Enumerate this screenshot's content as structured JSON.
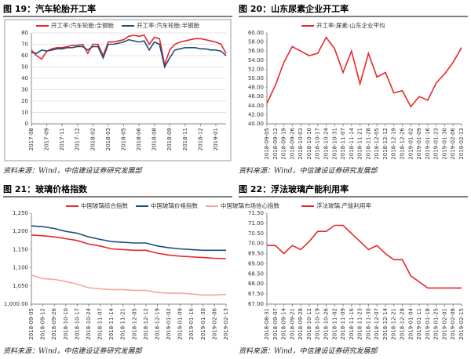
{
  "chart_data": [
    {
      "type": "line",
      "title": "图 19：汽车轮胎开工率",
      "source": "资料来源：Wind，中信建设证券研究发展部",
      "categories": [
        "2017-08",
        null,
        null,
        "2017-09",
        null,
        null,
        "2017-11",
        null,
        null,
        "2017-12",
        null,
        null,
        "2018-02",
        null,
        null,
        "2018-03",
        null,
        null,
        "2018-05",
        null,
        null,
        "2018-06",
        null,
        null,
        "2018-08",
        null,
        null,
        "2018-09",
        null,
        null,
        "2018-11",
        null,
        null,
        "2018-12",
        null,
        null,
        "2019-01",
        null,
        null
      ],
      "series": [
        {
          "name": "开工率:汽车轮胎:全钢胎",
          "color": "#e8262b",
          "values": [
            65,
            60,
            57,
            64,
            66,
            67,
            67,
            68,
            69,
            69,
            70,
            62,
            70,
            70,
            60,
            72,
            72,
            73,
            74,
            77,
            78,
            77,
            78,
            70,
            76,
            75,
            52,
            65,
            70,
            72,
            73,
            74,
            75,
            75,
            74,
            73,
            72,
            70,
            62
          ]
        },
        {
          "name": "开工率:汽车轮胎:半钢胎",
          "color": "#1f4e79",
          "values": [
            63,
            62,
            65,
            64,
            65,
            66,
            66,
            67,
            67,
            68,
            68,
            65,
            68,
            68,
            58,
            70,
            70,
            71,
            72,
            74,
            73,
            72,
            73,
            65,
            72,
            70,
            50,
            58,
            65,
            66,
            67,
            67,
            67,
            66,
            66,
            65,
            65,
            64,
            60
          ]
        }
      ],
      "ylim": [
        0,
        80
      ],
      "yticks": [
        0,
        10,
        20,
        30,
        40,
        50,
        60,
        70,
        80
      ],
      "grid": true,
      "frame": true
    },
    {
      "type": "line",
      "title": "图 20：山东尿素企业开工率",
      "source": "资料来源：Wind，中信建设证券研究发展部",
      "categories": [
        "2018-09-05",
        "2018-09-12",
        "2018-09-19",
        "2018-09-26",
        "2018-10-03",
        "2018-10-10",
        "2018-10-17",
        "2018-10-24",
        "2018-10-31",
        "2018-11-07",
        "2018-11-14",
        "2018-11-21",
        "2018-11-28",
        "2018-12-05",
        "2018-12-12",
        "2018-12-19",
        "2018-12-26",
        "2019-01-02",
        "2019-01-09",
        "2019-01-16",
        "2019-01-23",
        "2019-01-30",
        "2019-02-06",
        "2019-02-13"
      ],
      "series": [
        {
          "name": "开工率:尿素:山东企业平均",
          "color": "#e8262b",
          "values": [
            44.5,
            48.5,
            53.5,
            57,
            56,
            55,
            55.5,
            59,
            56.5,
            51.3,
            56,
            48.8,
            55.5,
            50.3,
            51.3,
            46.8,
            47.3,
            43.8,
            46,
            45.2,
            49,
            51,
            53.5,
            56.8
          ]
        }
      ],
      "ylim": [
        40,
        60
      ],
      "yticks": [
        {
          "value": 40,
          "label": "40.00"
        },
        {
          "value": 42,
          "label": "42.00"
        },
        {
          "value": 44,
          "label": "44.00"
        },
        {
          "value": 46,
          "label": "46.00"
        },
        {
          "value": 48,
          "label": "48.00"
        },
        {
          "value": 50,
          "label": "50.00"
        },
        {
          "value": 52,
          "label": "52.00"
        },
        {
          "value": 54,
          "label": "54.00"
        },
        {
          "value": 56,
          "label": "56.00"
        },
        {
          "value": 58,
          "label": "58.00"
        },
        {
          "value": 60,
          "label": "60.00"
        }
      ],
      "grid": false,
      "frame": false
    },
    {
      "type": "line",
      "title": "图 21：玻璃价格指数",
      "source": "资料来源：Wind，中信建设证券研究发展部",
      "categories": [
        "2018-09-05",
        "2018-09-12",
        "2018-09-26",
        "2018-10-10",
        "2018-10-17",
        "2018-10-24",
        "2018-11-07",
        "2018-11-14",
        "2018-11-21",
        "2018-12-05",
        "2018-12-12",
        "2018-12-19",
        "2019-01-02",
        "2019-01-09",
        "2019-01-16",
        "2019-01-30",
        "2019-02-06",
        "2019-02-13"
      ],
      "series": [
        {
          "name": "中国玻璃综合指数",
          "color": "#e8262b",
          "values": [
            1190,
            1188,
            1185,
            1180,
            1175,
            1165,
            1160,
            1152,
            1150,
            1148,
            1148,
            1140,
            1135,
            1132,
            1130,
            1128,
            1126,
            1125
          ]
        },
        {
          "name": "中国玻璃价格指数",
          "color": "#1f4e79",
          "values": [
            1215,
            1213,
            1208,
            1200,
            1195,
            1185,
            1178,
            1172,
            1170,
            1168,
            1168,
            1160,
            1155,
            1152,
            1150,
            1148,
            1148,
            1148
          ]
        },
        {
          "name": "中国玻璃市场信心指数",
          "color": "#f4a6a0",
          "values": [
            1080,
            1070,
            1068,
            1062,
            1055,
            1045,
            1042,
            1040,
            1040,
            1038,
            1038,
            1032,
            1030,
            1030,
            1028,
            1025,
            1025,
            1027
          ]
        }
      ],
      "ylim": [
        1000,
        1250
      ],
      "yticks": [
        {
          "value": 1000,
          "label": "1,000.00"
        },
        {
          "value": 1050,
          "label": "1,050"
        },
        {
          "value": 1100,
          "label": "1,100"
        },
        {
          "value": 1150,
          "label": "1,150"
        },
        {
          "value": 1200,
          "label": "1,200"
        },
        {
          "value": 1250,
          "label": "1,250"
        }
      ],
      "grid": false,
      "frame": false
    },
    {
      "type": "line",
      "title": "图 22：浮法玻璃产能利用率",
      "source": "资料来源：Wind，中信建设证券研究发展部",
      "categories": [
        "2018-08-31",
        "2018-09-07",
        "2018-09-14",
        "2018-09-21",
        "2018-09-28",
        "2018-10-12",
        "2018-10-19",
        "2018-10-26",
        "2018-11-02",
        "2018-11-09",
        "2018-11-16",
        "2018-11-23",
        "2018-11-30",
        "2018-12-07",
        "2018-12-14",
        "2018-12-21",
        "2018-12-28",
        "2019-01-04",
        "2019-01-11",
        "2019-01-18",
        "2019-01-25",
        "2019-02-01",
        "2019-02-08",
        "2019-02-15"
      ],
      "series": [
        {
          "name": "浮法玻璃:产能利用率",
          "color": "#e8262b",
          "values": [
            69.9,
            69.9,
            69.5,
            69.9,
            69.7,
            70.1,
            70.6,
            70.6,
            70.9,
            70.9,
            70.5,
            70.1,
            69.7,
            69.9,
            69.5,
            69.2,
            69.2,
            68.4,
            68.1,
            67.8,
            67.8,
            67.8,
            67.8,
            67.8
          ]
        }
      ],
      "ylim": [
        67,
        71.5
      ],
      "yticks": [
        {
          "value": 67,
          "label": "67.00"
        },
        {
          "value": 67.5,
          "label": "67.50"
        },
        {
          "value": 68,
          "label": "68.00"
        },
        {
          "value": 68.5,
          "label": "68.50"
        },
        {
          "value": 69,
          "label": "69.00"
        },
        {
          "value": 69.5,
          "label": "69.50"
        },
        {
          "value": 70,
          "label": "70.00"
        },
        {
          "value": 70.5,
          "label": "70.50"
        },
        {
          "value": 71,
          "label": "71.00"
        },
        {
          "value": 71.5,
          "label": "71.50"
        }
      ],
      "grid": false,
      "frame": false
    }
  ]
}
